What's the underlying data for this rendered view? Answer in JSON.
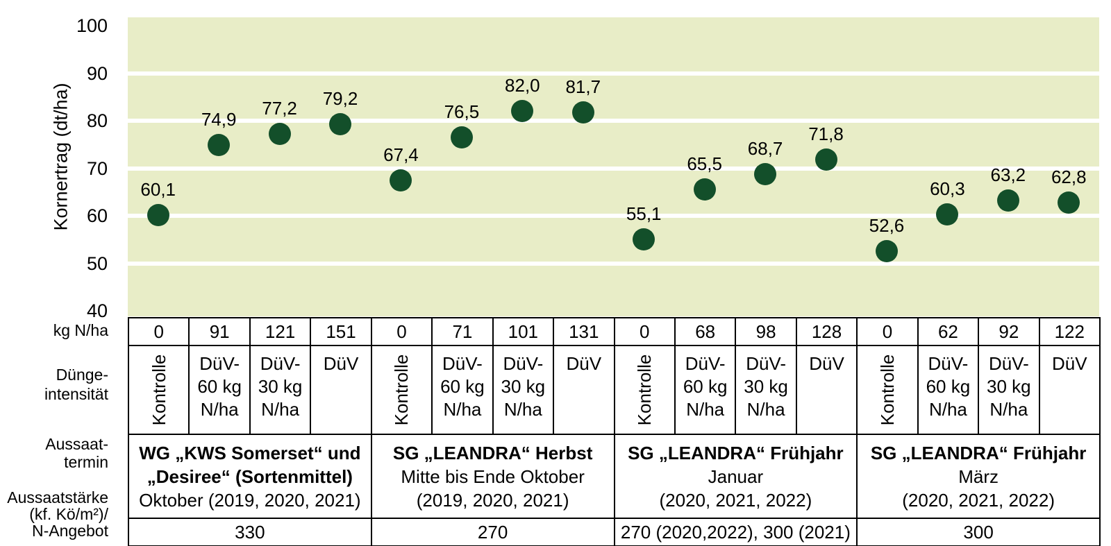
{
  "chart_data": {
    "type": "scatter",
    "title": "",
    "ylabel": "Kornertrag (dt/ha)",
    "ylim": [
      40,
      100
    ],
    "yticks": [
      100,
      90,
      80,
      70,
      60,
      50,
      40
    ],
    "gridline_values": [
      90,
      80,
      70,
      60,
      50
    ],
    "grid": "horizontal white lines on light green plot background",
    "legend": "none",
    "plot_bg_color": "#e8edc7",
    "point_color": "#134f2a",
    "x": [
      1,
      2,
      3,
      4,
      5,
      6,
      7,
      8,
      9,
      10,
      11,
      12,
      13,
      14,
      15,
      16
    ],
    "values": [
      60.1,
      74.9,
      77.2,
      79.2,
      67.4,
      76.5,
      82.0,
      81.7,
      55.1,
      65.5,
      68.7,
      71.8,
      52.6,
      60.3,
      63.2,
      62.8
    ],
    "point_labels": [
      "60,1",
      "74,9",
      "77,2",
      "79,2",
      "67,4",
      "76,5",
      "82,0",
      "81,7",
      "55,1",
      "65,5",
      "68,7",
      "71,8",
      "52,6",
      "60,3",
      "63,2",
      "62,8"
    ]
  },
  "table": {
    "row_labels": {
      "n_rate": [
        "kg N/ha"
      ],
      "intensity": [
        "Dünge-",
        "intensität"
      ],
      "sowing_date": [
        "Aussaat-",
        "termin"
      ],
      "seed_rate": [
        "Aussaatstärke",
        "(kf. Kö/m²)/",
        "N-Angebot"
      ]
    },
    "n_rate": [
      "0",
      "91",
      "121",
      "151",
      "0",
      "71",
      "101",
      "131",
      "0",
      "68",
      "98",
      "128",
      "0",
      "62",
      "92",
      "122"
    ],
    "intensity": [
      {
        "rotated": true,
        "lines": [
          "Kontrolle"
        ]
      },
      {
        "rotated": false,
        "lines": [
          "DüV-",
          "60 kg",
          "N/ha"
        ]
      },
      {
        "rotated": false,
        "lines": [
          "DüV-",
          "30 kg",
          "N/ha"
        ]
      },
      {
        "rotated": false,
        "lines": [
          "DüV"
        ]
      },
      {
        "rotated": true,
        "lines": [
          "Kontrolle"
        ]
      },
      {
        "rotated": false,
        "lines": [
          "DüV-",
          "60 kg",
          "N/ha"
        ]
      },
      {
        "rotated": false,
        "lines": [
          "DüV-",
          "30 kg",
          "N/ha"
        ]
      },
      {
        "rotated": false,
        "lines": [
          "DüV"
        ]
      },
      {
        "rotated": true,
        "lines": [
          "Kontrolle"
        ]
      },
      {
        "rotated": false,
        "lines": [
          "DüV-",
          "60 kg",
          "N/ha"
        ]
      },
      {
        "rotated": false,
        "lines": [
          "DüV-",
          "30 kg",
          "N/ha"
        ]
      },
      {
        "rotated": false,
        "lines": [
          "DüV"
        ]
      },
      {
        "rotated": true,
        "lines": [
          "Kontrolle"
        ]
      },
      {
        "rotated": false,
        "lines": [
          "DüV-",
          "60 kg",
          "N/ha"
        ]
      },
      {
        "rotated": false,
        "lines": [
          "DüV-",
          "30 kg",
          "N/ha"
        ]
      },
      {
        "rotated": false,
        "lines": [
          "DüV"
        ]
      }
    ],
    "sowing_date_groups": [
      {
        "bold_lines": [
          "WG „KWS Somerset“ und",
          "„Desiree“ (Sortenmittel)"
        ],
        "lines": [
          "Oktober (2019, 2020, 2021)"
        ]
      },
      {
        "bold_lines": [
          "SG „LEANDRA“ Herbst"
        ],
        "lines": [
          "Mitte bis Ende Oktober",
          "(2019, 2020, 2021)"
        ]
      },
      {
        "bold_lines": [
          "SG „LEANDRA“ Frühjahr"
        ],
        "lines": [
          "Januar",
          "(2020, 2021, 2022)"
        ]
      },
      {
        "bold_lines": [
          "SG „LEANDRA“ Frühjahr"
        ],
        "lines": [
          "März",
          "(2020, 2021, 2022)"
        ]
      }
    ],
    "seed_rate_groups": [
      "330",
      "270",
      "270 (2020,2022), 300 (2021)",
      "300"
    ]
  }
}
